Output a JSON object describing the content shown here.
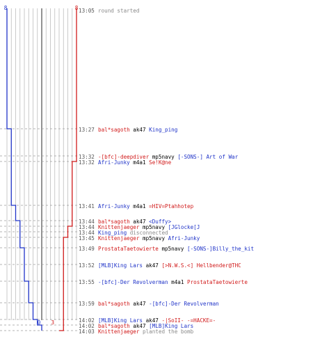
{
  "chart_data": {
    "type": "line",
    "title": "",
    "start_score": {
      "blue": "8",
      "red": "8"
    },
    "end_score": {
      "blue": "0",
      "red": "3"
    },
    "colors": {
      "blue": "#1f33c8",
      "red": "#d11a1a",
      "grid": "#bdbdbd",
      "center": "#777777",
      "dash": "#9a9a9a",
      "time": "#555555",
      "gray_text": "#8a8a8a"
    },
    "series": [
      {
        "team": "blue",
        "values": [
          8,
          7,
          7,
          7,
          6,
          5,
          5,
          5,
          5,
          4,
          4,
          3,
          2,
          1,
          0,
          0,
          0
        ]
      },
      {
        "team": "red",
        "values": [
          8,
          8,
          8,
          7,
          7,
          7,
          6,
          6,
          5,
          5,
          5,
          5,
          5,
          5,
          5,
          4,
          3
        ]
      }
    ],
    "events": [
      {
        "time": "13:05",
        "parts": [
          {
            "t": "round started",
            "c": "gray"
          }
        ]
      },
      {
        "time": "13:27",
        "parts": [
          {
            "t": "bal*sagoth",
            "c": "red"
          },
          {
            "t": " ak47 ",
            "c": "black"
          },
          {
            "t": "King_ping",
            "c": "blue"
          }
        ]
      },
      {
        "time": "13:32",
        "parts": [
          {
            "t": "-[bfc]-deepdiver",
            "c": "red"
          },
          {
            "t": " mp5navy ",
            "c": "black"
          },
          {
            "t": "[-SONS-] Art of War",
            "c": "blue"
          }
        ]
      },
      {
        "time": "13:32",
        "parts": [
          {
            "t": "Afri-Junky",
            "c": "blue"
          },
          {
            "t": " m4a1 ",
            "c": "black"
          },
          {
            "t": "Se!K@ne",
            "c": "red"
          }
        ]
      },
      {
        "time": "13:41",
        "parts": [
          {
            "t": "Afri-Junky",
            "c": "blue"
          },
          {
            "t": " m4a1 ",
            "c": "black"
          },
          {
            "t": "=HIV=Ptahhotep",
            "c": "red"
          }
        ]
      },
      {
        "time": "13:44",
        "parts": [
          {
            "t": "bal*sagoth",
            "c": "red"
          },
          {
            "t": " ak47 ",
            "c": "black"
          },
          {
            "t": "<Duffy>",
            "c": "blue"
          }
        ]
      },
      {
        "time": "13:44",
        "parts": [
          {
            "t": "Knittenjaeger",
            "c": "red"
          },
          {
            "t": " mp5navy ",
            "c": "black"
          },
          {
            "t": "[JGlocke[J",
            "c": "blue"
          }
        ]
      },
      {
        "time": "13:44",
        "parts": [
          {
            "t": "King_ping",
            "c": "blue"
          },
          {
            "t": " disconnected",
            "c": "gray"
          }
        ]
      },
      {
        "time": "13:45",
        "parts": [
          {
            "t": "Knittenjaeger",
            "c": "red"
          },
          {
            "t": " mp5navy ",
            "c": "black"
          },
          {
            "t": "Afri-Junky",
            "c": "blue"
          }
        ]
      },
      {
        "time": "13:49",
        "parts": [
          {
            "t": "ProstataTaetowierte",
            "c": "red"
          },
          {
            "t": " mp5navy ",
            "c": "black"
          },
          {
            "t": "[-SONS-]Billy_the_kit",
            "c": "blue"
          }
        ]
      },
      {
        "time": "13:52",
        "parts": [
          {
            "t": "[MLB]King Lars",
            "c": "blue"
          },
          {
            "t": " ak47 ",
            "c": "black"
          },
          {
            "t": "[>N.W.S.<]",
            "c": "red"
          },
          {
            "t": " Hellbender@THC",
            "c": "red"
          }
        ]
      },
      {
        "time": "13:55",
        "parts": [
          {
            "t": "-[bfc]-Der Revolverman",
            "c": "blue"
          },
          {
            "t": " m4a1 ",
            "c": "black"
          },
          {
            "t": "ProstataTaetowierte",
            "c": "red"
          }
        ]
      },
      {
        "time": "13:59",
        "parts": [
          {
            "t": "bal*sagoth",
            "c": "red"
          },
          {
            "t": " ak47 ",
            "c": "black"
          },
          {
            "t": "-[bfc]-Der Revolverman",
            "c": "blue"
          }
        ]
      },
      {
        "time": "14:02",
        "parts": [
          {
            "t": "[MLB]King Lars",
            "c": "blue"
          },
          {
            "t": " ak47 ",
            "c": "black"
          },
          {
            "t": "-|SoII- -=HACKE=-",
            "c": "red"
          }
        ]
      },
      {
        "time": "14:02",
        "parts": [
          {
            "t": "bal*sagoth",
            "c": "red"
          },
          {
            "t": " ak47 ",
            "c": "black"
          },
          {
            "t": "[MLB]King Lars",
            "c": "blue"
          }
        ]
      },
      {
        "time": "14:03",
        "parts": [
          {
            "t": "Knittenjaeger",
            "c": "red"
          },
          {
            "t": " planted the bomb",
            "c": "gray"
          }
        ]
      }
    ]
  }
}
